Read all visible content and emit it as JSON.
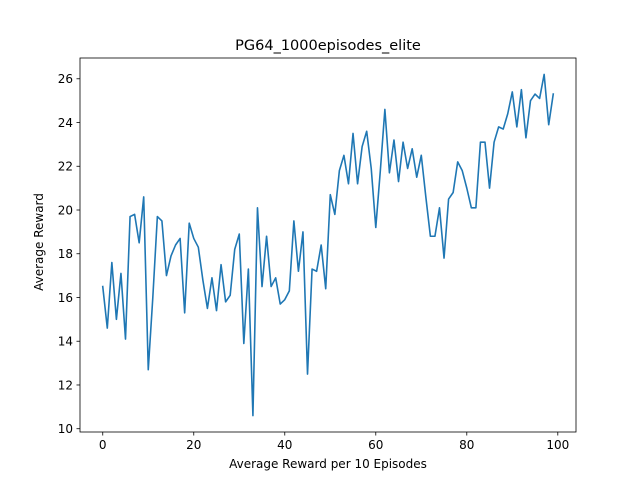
{
  "chart_data": {
    "type": "line",
    "title": "PG64_1000episodes_elite",
    "xlabel": "Average Reward per 10 Episodes",
    "ylabel": "Average Reward",
    "xlim": [
      -5,
      104
    ],
    "ylim": [
      9.85,
      26.95
    ],
    "xticks": [
      0,
      20,
      40,
      60,
      80,
      100
    ],
    "yticks": [
      10,
      12,
      14,
      16,
      18,
      20,
      22,
      24,
      26
    ],
    "grid": false,
    "legend": "none",
    "colors": {
      "line": "#1f77b4",
      "axes": "#000000",
      "background": "#ffffff"
    },
    "series": [
      {
        "values": [
          16.5,
          14.6,
          17.6,
          15.0,
          17.1,
          14.1,
          19.7,
          19.8,
          18.5,
          20.6,
          12.7,
          16.0,
          19.7,
          19.5,
          17.0,
          17.9,
          18.4,
          18.7,
          15.3,
          19.4,
          18.7,
          18.3,
          16.8,
          15.5,
          16.9,
          15.4,
          17.5,
          15.8,
          16.1,
          18.2,
          18.9,
          13.9,
          17.3,
          10.6,
          20.1,
          16.5,
          18.8,
          16.5,
          16.9,
          15.7,
          15.9,
          16.3,
          19.5,
          17.2,
          19.0,
          12.5,
          17.3,
          17.2,
          18.4,
          16.4,
          20.7,
          19.8,
          21.8,
          22.5,
          21.2,
          23.5,
          21.2,
          22.9,
          23.6,
          21.9,
          19.2,
          21.8,
          24.6,
          21.7,
          23.2,
          21.3,
          23.1,
          21.9,
          22.8,
          21.5,
          22.5,
          20.6,
          18.8,
          18.8,
          20.1,
          17.8,
          20.5,
          20.8,
          22.2,
          21.8,
          21.0,
          20.1,
          20.1,
          23.1,
          23.1,
          21.0,
          23.1,
          23.8,
          23.7,
          24.4,
          25.4,
          23.8,
          25.5,
          23.3,
          25.0,
          25.3,
          25.1,
          26.2,
          23.9,
          25.3
        ]
      }
    ]
  }
}
